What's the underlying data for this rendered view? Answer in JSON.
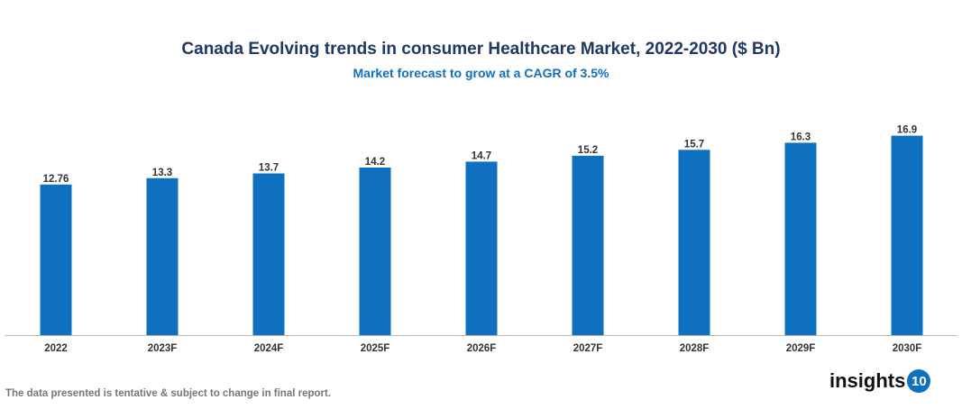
{
  "chart_data": {
    "type": "bar",
    "title": "Canada Evolving trends in consumer Healthcare Market, 2022-2030 ($ Bn)",
    "subtitle": "Market forecast to grow at a CAGR of 3.5%",
    "categories": [
      "2022",
      "2023F",
      "2024F",
      "2025F",
      "2026F",
      "2027F",
      "2028F",
      "2029F",
      "2030F"
    ],
    "values": [
      12.76,
      13.3,
      13.7,
      14.2,
      14.7,
      15.2,
      15.7,
      16.3,
      16.9
    ],
    "labels": [
      "12.76",
      "13.3",
      "13.7",
      "14.2",
      "14.7",
      "15.2",
      "15.7",
      "16.3",
      "16.9"
    ],
    "ylim": [
      0,
      18
    ],
    "grid": false,
    "bar_color": "#1070c0",
    "xlabel": "",
    "ylabel": ""
  },
  "footer": {
    "note": "The data presented is tentative & subject to change in final report.",
    "logo_text": "insights",
    "logo_badge": "10"
  }
}
